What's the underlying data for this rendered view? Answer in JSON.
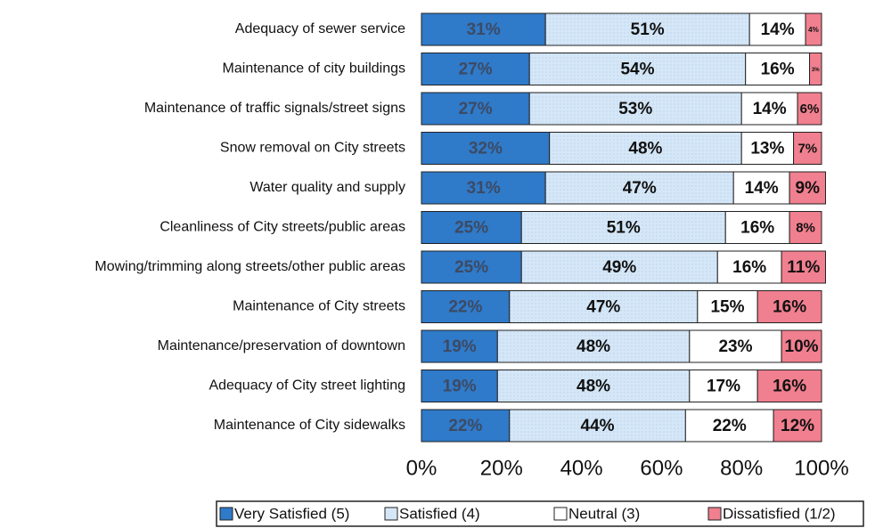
{
  "chart_data": {
    "type": "stacked-bar-horizontal",
    "categories": [
      "Adequacy of sewer service",
      "Maintenance of city buildings",
      "Maintenance of traffic signals/street signs",
      "Snow removal on City streets",
      "Water quality and supply",
      "Cleanliness of City streets/public areas",
      "Mowing/trimming along streets/other public areas",
      "Maintenance of City streets",
      "Maintenance/preservation of downtown",
      "Adequacy of City street lighting",
      "Maintenance of City sidewalks"
    ],
    "series": [
      {
        "name": "Very Satisfied (5)",
        "color": "#2f7ac9",
        "values": [
          31,
          27,
          27,
          32,
          31,
          25,
          25,
          22,
          19,
          19,
          22
        ],
        "value_labels": [
          "31%",
          "27%",
          "27%",
          "32%",
          "31%",
          "25%",
          "25%",
          "22%",
          "19%",
          "19%",
          "22%"
        ]
      },
      {
        "name": "Satisfied (4)",
        "color": "#d5e7f7",
        "values": [
          51,
          54,
          53,
          48,
          47,
          51,
          49,
          47,
          48,
          48,
          44
        ],
        "value_labels": [
          "51%",
          "54%",
          "53%",
          "48%",
          "47%",
          "51%",
          "49%",
          "47%",
          "48%",
          "48%",
          "44%"
        ]
      },
      {
        "name": "Neutral (3)",
        "color": "#ffffff",
        "values": [
          14,
          16,
          14,
          13,
          14,
          16,
          16,
          15,
          23,
          17,
          22
        ],
        "value_labels": [
          "14%",
          "16%",
          "14%",
          "13%",
          "14%",
          "16%",
          "16%",
          "15%",
          "23%",
          "17%",
          "22%"
        ]
      },
      {
        "name": "Dissatisfied (1/2)",
        "color": "#f07f8f",
        "values": [
          4,
          3,
          6,
          7,
          9,
          8,
          11,
          16,
          10,
          16,
          12
        ],
        "value_labels": [
          "4%",
          "3%",
          "6%",
          "7%",
          "9%",
          "8%",
          "11%",
          "16%",
          "10%",
          "16%",
          "12%"
        ]
      }
    ],
    "xlim": [
      0,
      100
    ],
    "xticks": [
      {
        "value": 0,
        "label": "0%"
      },
      {
        "value": 20,
        "label": "20%"
      },
      {
        "value": 40,
        "label": "40%"
      },
      {
        "value": 60,
        "label": "60%"
      },
      {
        "value": 80,
        "label": "80%"
      },
      {
        "value": 100,
        "label": "100%"
      }
    ]
  }
}
